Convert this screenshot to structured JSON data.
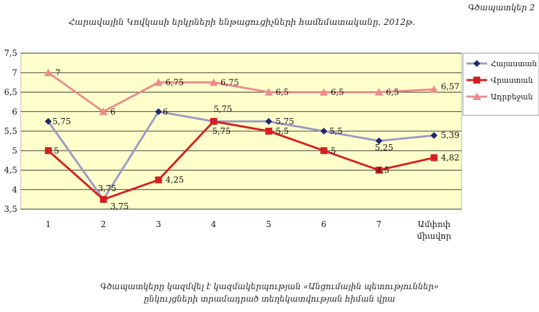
{
  "figure_label": "Գծապատկեր 2",
  "footnote_line1": "Գծապատկերը կազմվել է կազմակերպության «Անցումային պետություններ»",
  "footnote_line2": "ընկույցների տրամադրած տեղեկատվության հիման վրա",
  "chart_data": {
    "type": "line",
    "title": "Հարավային Կովկասի երկրների ենթացուցիչների համեմատականը, 2012թ.",
    "xlabel": "",
    "ylabel": "",
    "categories": [
      "1",
      "2",
      "3",
      "4",
      "5",
      "6",
      "7",
      "Ամփոփ միավոր"
    ],
    "ylim": [
      3.5,
      7.5
    ],
    "yticks": [
      "3,5",
      "4",
      "4,5",
      "5",
      "5,5",
      "6",
      "6,5",
      "7",
      "7,5"
    ],
    "grid": true,
    "legend_position": "right",
    "series": [
      {
        "name": "Հայաստան",
        "color": "#9b9bc4",
        "marker_color": "#1f2a6e",
        "marker": "diamond",
        "values": [
          5.75,
          3.75,
          6,
          5.75,
          5.75,
          5.5,
          5.25,
          5.39
        ],
        "labels": [
          "5,75",
          "3,75",
          "6",
          "5,75",
          "5,75",
          "5,5",
          "5,25",
          "5,39"
        ]
      },
      {
        "name": "Վրաստան",
        "color": "#d42020",
        "marker_color": "#d42020",
        "marker": "square",
        "values": [
          5,
          3.75,
          4.25,
          5.75,
          5.5,
          5,
          4.5,
          4.82
        ],
        "labels": [
          "5",
          "3,75",
          "4,25",
          "5,75",
          "5,5",
          "5",
          "4,5",
          "4,82"
        ]
      },
      {
        "name": "Ադրբեջան",
        "color": "#eb8c8c",
        "marker_color": "#eb8c8c",
        "marker": "triangle",
        "values": [
          7,
          6,
          6.75,
          6.75,
          6.5,
          6.5,
          6.5,
          6.57
        ],
        "labels": [
          "7",
          "6",
          "6,75",
          "6,75",
          "6,5",
          "6,5",
          "6,5",
          "6,57"
        ]
      }
    ]
  }
}
